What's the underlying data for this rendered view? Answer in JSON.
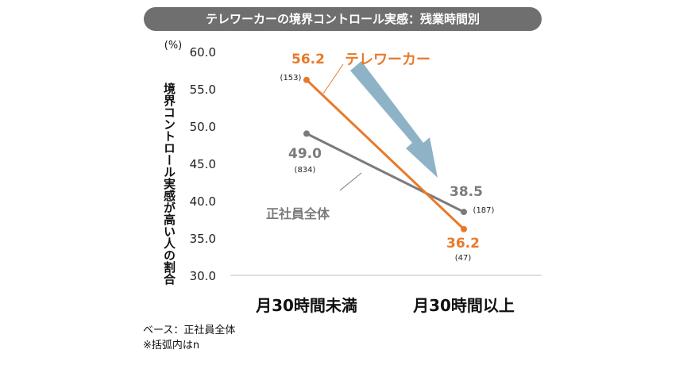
{
  "title": "テレワーカーの境界コントロール実感：残業時間別",
  "chart_data": {
    "type": "line",
    "unit": "(%)",
    "ylabel": "境界コントロール実感が高い人の割合",
    "categories": [
      "月30時間未満",
      "月30時間以上"
    ],
    "ylim": [
      30.0,
      60.0
    ],
    "yticks": [
      "60.0",
      "55.0",
      "50.0",
      "45.0",
      "40.0",
      "35.0",
      "30.0"
    ],
    "series": [
      {
        "name": "テレワーカー",
        "color": "#e8792a",
        "values": [
          56.2,
          36.2
        ],
        "labels": [
          "56.2",
          "36.2"
        ],
        "n": [
          "(153)",
          "(47)"
        ]
      },
      {
        "name": "正社員全体",
        "color": "#7b7b7b",
        "values": [
          49.0,
          38.5
        ],
        "labels": [
          "49.0",
          "38.5"
        ],
        "n": [
          "(834)",
          "(187)"
        ]
      }
    ],
    "arrow_color": "#8fb3c6"
  },
  "notes": [
    "ベース：正社員全体",
    "※括弧内はn"
  ]
}
